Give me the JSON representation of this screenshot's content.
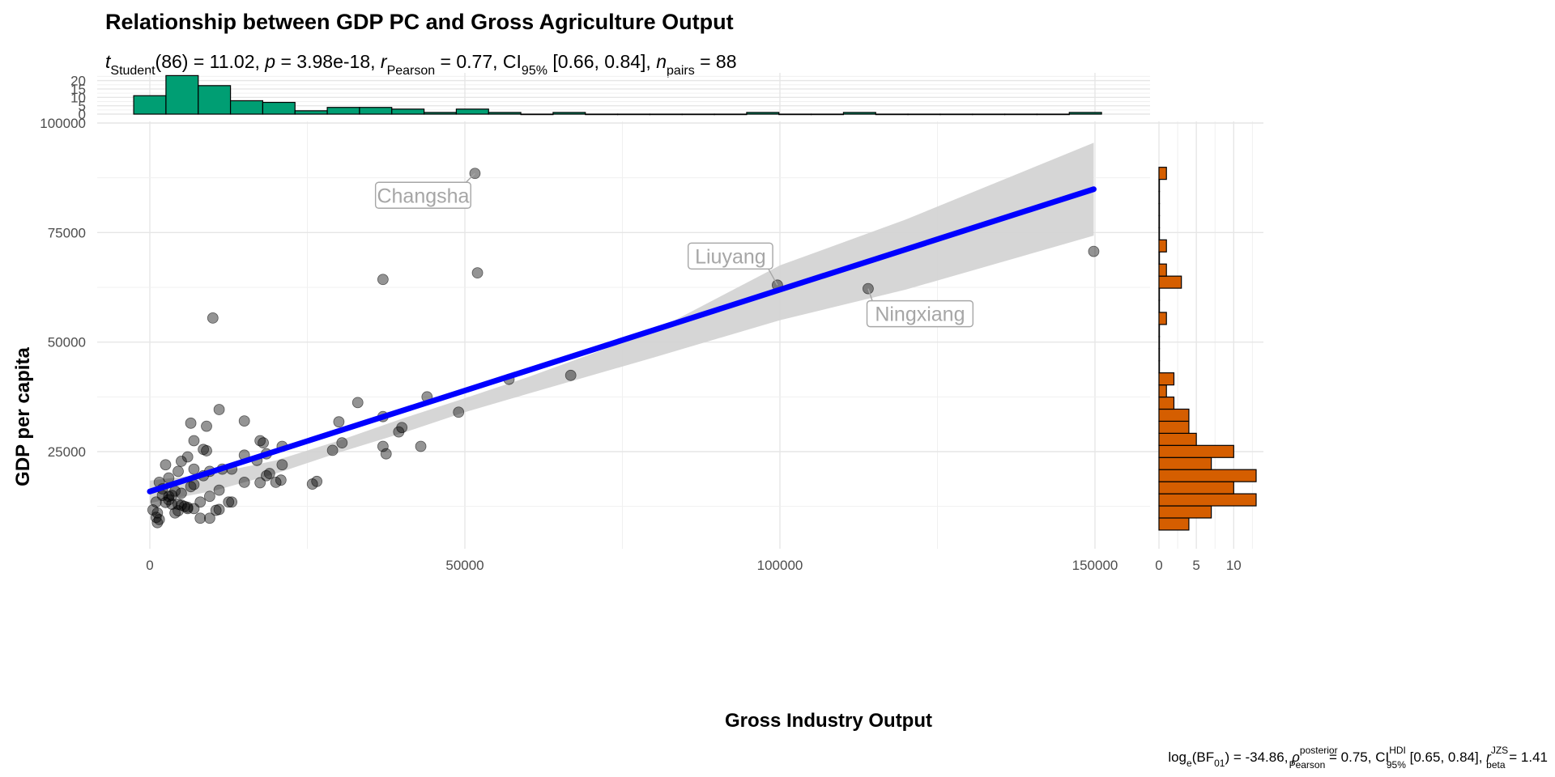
{
  "title": "Relationship between GDP PC and Gross Agriculture Output",
  "subtitle": {
    "t": "t",
    "t_sub": "Student",
    "df": "(86) = 11.02, ",
    "p": "p",
    "p_val": " = 3.98e-18, ",
    "r": "r",
    "r_sub": "Pearson",
    "r_val": " = 0.77, CI",
    "ci_sub": "95%",
    "ci_val": " [0.66, 0.84], ",
    "n": "n",
    "n_sub": "pairs",
    "n_val": " = 88"
  },
  "caption": {
    "a": "log",
    "a_sub": "e",
    "b": "(BF",
    "b_sub": "01",
    "c": ") = -34.86, ",
    "rho": "ρ",
    "rho_sup": "posterior",
    "rho_sub": "Pearson",
    "d": " = 0.75, CI",
    "ci_sup": "HDI",
    "ci_sub": "95%",
    "e": " [0.65, 0.84], ",
    "r": "r",
    "r_sup": "JZS",
    "r_sub": "beta",
    "f": " = 1.41"
  },
  "colors": {
    "points": "#000000",
    "fit_line": "#0000ff",
    "ci_band": "#d3d3d3",
    "x_hist": "#009e73",
    "y_hist": "#d55e00"
  },
  "chart_data": {
    "type": "scatter",
    "xlabel": "Gross Industry Output",
    "ylabel": "GDP per capita",
    "xlim": [
      -3000,
      153000
    ],
    "ylim": [
      5000,
      100000
    ],
    "x_ticks": [
      0,
      50000,
      100000,
      150000
    ],
    "x_tick_labels": [
      "0",
      "50000",
      "100000",
      "150000"
    ],
    "y_ticks": [
      25000,
      50000,
      75000,
      100000
    ],
    "y_tick_labels": [
      "25000",
      "50000",
      "75000",
      "100000"
    ],
    "grid": true,
    "points": [
      [
        51600,
        88500
      ],
      [
        52000,
        65800
      ],
      [
        37000,
        64300
      ],
      [
        149800,
        70700
      ],
      [
        99600,
        63000
      ],
      [
        114000,
        62200
      ],
      [
        10000,
        55500
      ],
      [
        66800,
        42400
      ],
      [
        57000,
        41500
      ],
      [
        44000,
        37500
      ],
      [
        49000,
        34000
      ],
      [
        33000,
        36200
      ],
      [
        37000,
        33000
      ],
      [
        30000,
        31800
      ],
      [
        39500,
        29500
      ],
      [
        40000,
        30500
      ],
      [
        30500,
        27000
      ],
      [
        29000,
        25300
      ],
      [
        37000,
        26200
      ],
      [
        37500,
        24500
      ],
      [
        43000,
        26200
      ],
      [
        11000,
        34600
      ],
      [
        15000,
        32000
      ],
      [
        6500,
        31500
      ],
      [
        9000,
        30800
      ],
      [
        7000,
        27500
      ],
      [
        17500,
        27500
      ],
      [
        18000,
        27000
      ],
      [
        21000,
        26200
      ],
      [
        8500,
        25500
      ],
      [
        9000,
        25200
      ],
      [
        15000,
        24200
      ],
      [
        18500,
        24500
      ],
      [
        6000,
        23800
      ],
      [
        5000,
        22800
      ],
      [
        17000,
        23000
      ],
      [
        13000,
        21000
      ],
      [
        11500,
        21000
      ],
      [
        21000,
        22000
      ],
      [
        19000,
        20000
      ],
      [
        2500,
        22000
      ],
      [
        4500,
        20500
      ],
      [
        7000,
        21000
      ],
      [
        9500,
        20500
      ],
      [
        18500,
        19500
      ],
      [
        20800,
        18500
      ],
      [
        15000,
        18000
      ],
      [
        17500,
        17900
      ],
      [
        20000,
        18000
      ],
      [
        25800,
        17600
      ],
      [
        26500,
        18200
      ],
      [
        1500,
        18000
      ],
      [
        2000,
        16500
      ],
      [
        3500,
        15000
      ],
      [
        3000,
        14800
      ],
      [
        7000,
        17500
      ],
      [
        11000,
        16200
      ],
      [
        9500,
        14800
      ],
      [
        12500,
        13500
      ],
      [
        13000,
        13500
      ],
      [
        1000,
        13500
      ],
      [
        3500,
        13000
      ],
      [
        5000,
        12800
      ],
      [
        5500,
        12500
      ],
      [
        6000,
        12300
      ],
      [
        8000,
        13500
      ],
      [
        7000,
        12000
      ],
      [
        500,
        11700
      ],
      [
        1200,
        11000
      ],
      [
        4000,
        11000
      ],
      [
        4500,
        11500
      ],
      [
        6000,
        12000
      ],
      [
        11000,
        11800
      ],
      [
        10500,
        11600
      ],
      [
        1000,
        10000
      ],
      [
        1500,
        9500
      ],
      [
        8000,
        9800
      ],
      [
        9500,
        9800
      ],
      [
        1200,
        8800
      ],
      [
        2500,
        13400
      ],
      [
        3000,
        14000
      ],
      [
        4500,
        13000
      ],
      [
        5000,
        15500
      ],
      [
        4000,
        16000
      ],
      [
        2000,
        15000
      ],
      [
        3000,
        19000
      ],
      [
        6500,
        17000
      ],
      [
        8500,
        19500
      ]
    ],
    "labels": [
      {
        "name": "Changsha",
        "x": 51600,
        "y": 88500
      },
      {
        "name": "Liuyang",
        "x": 99600,
        "y": 63000
      },
      {
        "name": "Ningxiang",
        "x": 114000,
        "y": 62200
      }
    ],
    "fit": {
      "x0": 0,
      "y0": 15900,
      "x1": 149800,
      "y1": 84900
    },
    "ci_band": {
      "x": [
        0,
        10000,
        20000,
        30000,
        40000,
        50000,
        60000,
        80000,
        100000,
        120000,
        149800
      ],
      "lower": [
        13300,
        16000,
        20000,
        24800,
        29200,
        34000,
        38200,
        46500,
        55000,
        62000,
        74300
      ],
      "upper": [
        18400,
        20000,
        23000,
        27500,
        32500,
        37200,
        42000,
        52500,
        67500,
        78000,
        95500
      ]
    },
    "x_histogram": {
      "bin_width": 5120,
      "bin_starts": [
        -2560,
        2560,
        7680,
        12800,
        17920,
        23040,
        28160,
        33280,
        38400,
        43520,
        48640,
        53760,
        58880,
        64000,
        69120,
        74240,
        79360,
        84480,
        89600,
        94720,
        99840,
        104960,
        110080,
        115200,
        120320,
        125440,
        130560,
        135680,
        140800,
        145920
      ],
      "counts": [
        11,
        23,
        17,
        8,
        7,
        2,
        4,
        4,
        3,
        1,
        3,
        1,
        0,
        1,
        0,
        0,
        0,
        0,
        0,
        1,
        0,
        0,
        1,
        0,
        0,
        0,
        0,
        0,
        0,
        1
      ],
      "ticks": [
        0,
        5,
        10,
        15,
        20
      ]
    },
    "y_histogram": {
      "bin_width": 2760,
      "bin_starts": [
        7100,
        9860,
        12620,
        15380,
        18140,
        20900,
        23660,
        26420,
        29180,
        31940,
        34700,
        37460,
        40220,
        42980,
        45740,
        48500,
        51260,
        54020,
        56780,
        59540,
        62300,
        65060,
        67820,
        70580,
        73340,
        76100,
        78860,
        81620,
        84380,
        87140
      ],
      "counts": [
        4,
        7,
        13,
        10,
        13,
        7,
        10,
        5,
        4,
        4,
        2,
        1,
        2,
        0,
        0,
        0,
        0,
        1,
        0,
        0,
        3,
        1,
        0,
        1,
        0,
        0,
        0,
        0,
        0,
        1
      ],
      "ticks": [
        0,
        5,
        10
      ]
    }
  }
}
